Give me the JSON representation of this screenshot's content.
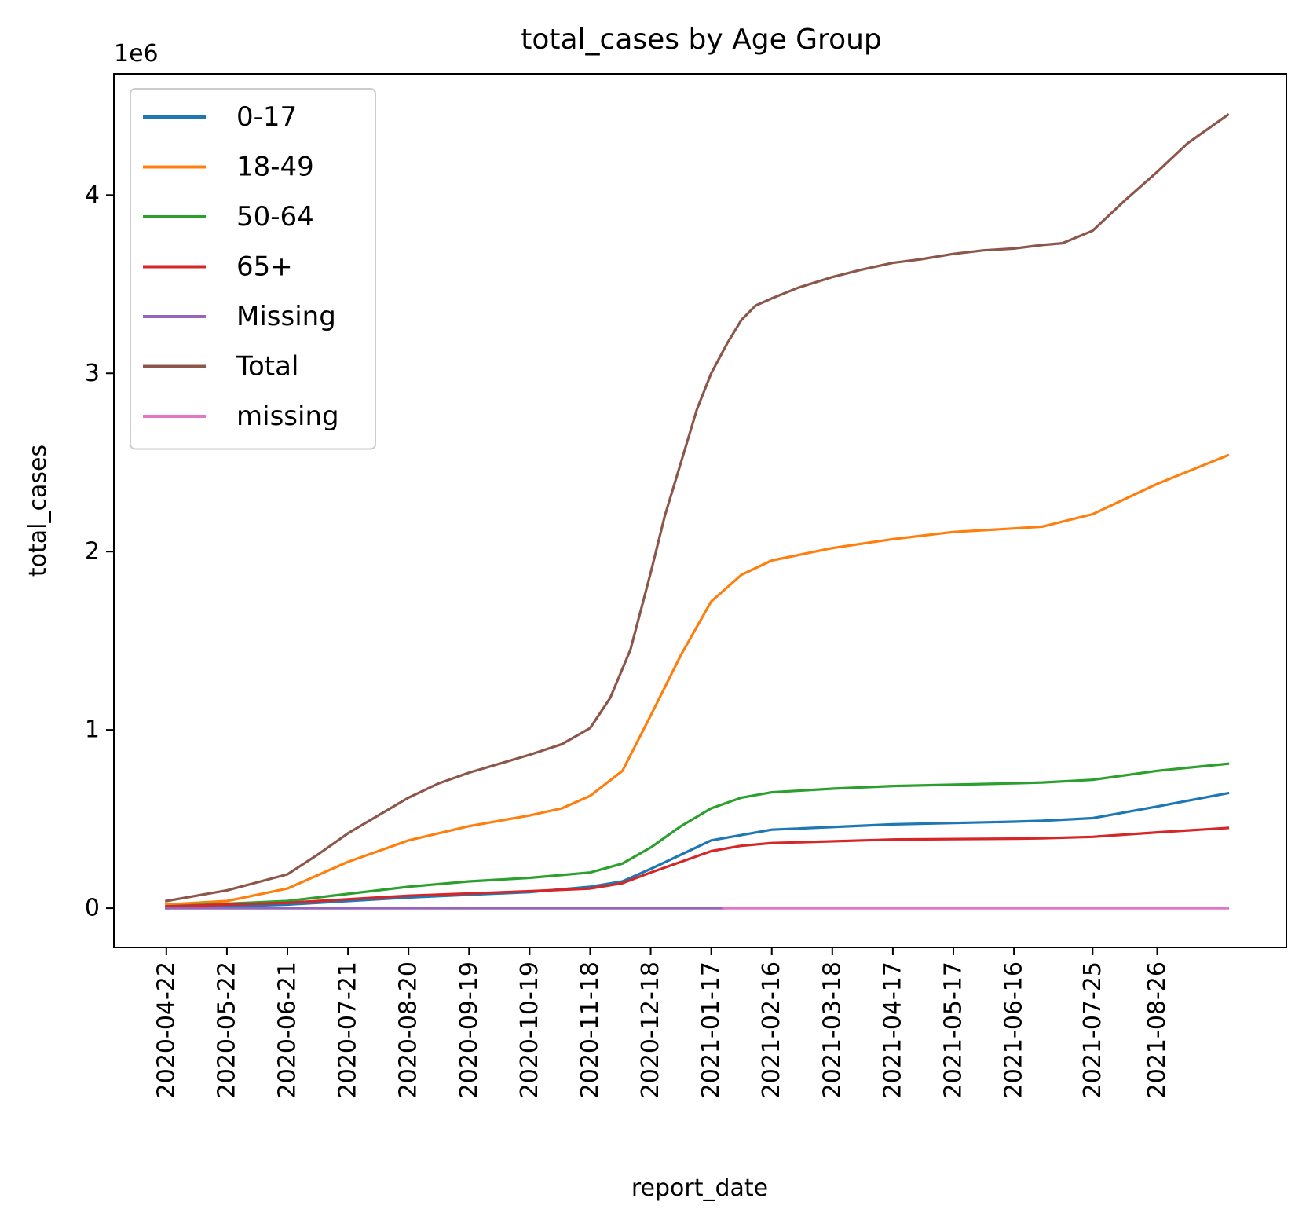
{
  "chart_data": {
    "type": "line",
    "title": "total_cases by Age Group",
    "xlabel": "report_date",
    "ylabel": "total_cases",
    "y_offset_label": "1e6",
    "x_tick_labels": [
      "2020-04-22",
      "2020-05-22",
      "2020-06-21",
      "2020-07-21",
      "2020-08-20",
      "2020-09-19",
      "2020-10-19",
      "2020-11-18",
      "2020-12-18",
      "2021-01-17",
      "2021-02-16",
      "2021-03-18",
      "2021-04-17",
      "2021-05-17",
      "2021-06-16",
      "2021-07-25",
      "2021-08-26"
    ],
    "y_ticks": [
      0,
      1000000,
      2000000,
      3000000,
      4000000
    ],
    "y_tick_labels": [
      "0",
      "1",
      "2",
      "3",
      "4"
    ],
    "xlim": [
      "2020-03-27",
      "2021-10-29"
    ],
    "ylim": [
      -220000,
      4680000
    ],
    "grid": false,
    "legend_position": "top-left",
    "series": [
      {
        "name": "0-17",
        "color": "#1f77b4",
        "x": [
          "2020-04-22",
          "2020-06-21",
          "2020-08-20",
          "2020-10-19",
          "2020-11-18",
          "2020-12-04",
          "2020-12-18",
          "2021-01-02",
          "2021-01-17",
          "2021-02-16",
          "2021-04-17",
          "2021-06-16",
          "2021-06-30",
          "2021-07-25",
          "2021-08-26",
          "2021-09-30"
        ],
        "values": [
          0,
          20000,
          60000,
          90000,
          120000,
          150000,
          220000,
          300000,
          380000,
          440000,
          470000,
          485000,
          490000,
          505000,
          570000,
          645000
        ]
      },
      {
        "name": "18-49",
        "color": "#ff7f0e",
        "x": [
          "2020-04-22",
          "2020-05-22",
          "2020-06-21",
          "2020-07-21",
          "2020-08-20",
          "2020-09-19",
          "2020-10-19",
          "2020-11-04",
          "2020-11-18",
          "2020-12-04",
          "2020-12-18",
          "2021-01-02",
          "2021-01-17",
          "2021-02-01",
          "2021-02-16",
          "2021-03-18",
          "2021-04-17",
          "2021-05-17",
          "2021-06-16",
          "2021-06-30",
          "2021-07-25",
          "2021-08-26",
          "2021-09-30"
        ],
        "values": [
          20000,
          40000,
          110000,
          260000,
          380000,
          460000,
          520000,
          560000,
          630000,
          770000,
          1080000,
          1420000,
          1720000,
          1870000,
          1950000,
          2020000,
          2070000,
          2110000,
          2130000,
          2140000,
          2210000,
          2380000,
          2540000
        ]
      },
      {
        "name": "50-64",
        "color": "#2ca02c",
        "x": [
          "2020-04-22",
          "2020-06-21",
          "2020-07-21",
          "2020-08-20",
          "2020-09-19",
          "2020-10-19",
          "2020-11-18",
          "2020-12-04",
          "2020-12-18",
          "2021-01-02",
          "2021-01-17",
          "2021-02-01",
          "2021-02-16",
          "2021-03-18",
          "2021-04-17",
          "2021-06-16",
          "2021-06-30",
          "2021-07-25",
          "2021-08-26",
          "2021-09-30"
        ],
        "values": [
          10000,
          40000,
          80000,
          120000,
          150000,
          170000,
          200000,
          250000,
          340000,
          460000,
          560000,
          620000,
          650000,
          670000,
          685000,
          700000,
          705000,
          720000,
          770000,
          810000
        ]
      },
      {
        "name": "65+",
        "color": "#d62728",
        "x": [
          "2020-04-22",
          "2020-06-21",
          "2020-08-20",
          "2020-10-19",
          "2020-11-18",
          "2020-12-04",
          "2020-12-18",
          "2021-01-02",
          "2021-01-17",
          "2021-02-01",
          "2021-02-16",
          "2021-04-17",
          "2021-06-16",
          "2021-06-30",
          "2021-07-25",
          "2021-08-26",
          "2021-09-30"
        ],
        "values": [
          10000,
          30000,
          70000,
          95000,
          110000,
          140000,
          200000,
          260000,
          320000,
          350000,
          365000,
          385000,
          390000,
          392000,
          400000,
          425000,
          450000
        ]
      },
      {
        "name": "Missing",
        "color": "#9467bd",
        "x": [
          "2020-04-22",
          "2021-01-23"
        ],
        "values": [
          0,
          0
        ]
      },
      {
        "name": "Total",
        "color": "#8c564b",
        "x": [
          "2020-04-22",
          "2020-05-22",
          "2020-06-21",
          "2020-07-06",
          "2020-07-21",
          "2020-08-05",
          "2020-08-20",
          "2020-09-04",
          "2020-09-19",
          "2020-10-04",
          "2020-10-19",
          "2020-11-04",
          "2020-11-18",
          "2020-11-28",
          "2020-12-08",
          "2020-12-18",
          "2020-12-25",
          "2021-01-02",
          "2021-01-10",
          "2021-01-17",
          "2021-01-25",
          "2021-02-01",
          "2021-02-08",
          "2021-02-16",
          "2021-03-01",
          "2021-03-18",
          "2021-04-01",
          "2021-04-17",
          "2021-05-01",
          "2021-05-17",
          "2021-06-01",
          "2021-06-16",
          "2021-06-30",
          "2021-07-10",
          "2021-07-25",
          "2021-08-10",
          "2021-08-26",
          "2021-09-10",
          "2021-09-30"
        ],
        "values": [
          40000,
          100000,
          190000,
          300000,
          420000,
          520000,
          620000,
          700000,
          760000,
          810000,
          860000,
          920000,
          1010000,
          1180000,
          1450000,
          1880000,
          2200000,
          2500000,
          2800000,
          3000000,
          3170000,
          3300000,
          3380000,
          3420000,
          3480000,
          3540000,
          3580000,
          3620000,
          3640000,
          3670000,
          3690000,
          3700000,
          3720000,
          3730000,
          3800000,
          3970000,
          4130000,
          4290000,
          4450000
        ]
      },
      {
        "name": "missing",
        "color": "#e377c2",
        "x": [
          "2021-01-23",
          "2021-09-30"
        ],
        "values": [
          0,
          0
        ]
      }
    ]
  }
}
